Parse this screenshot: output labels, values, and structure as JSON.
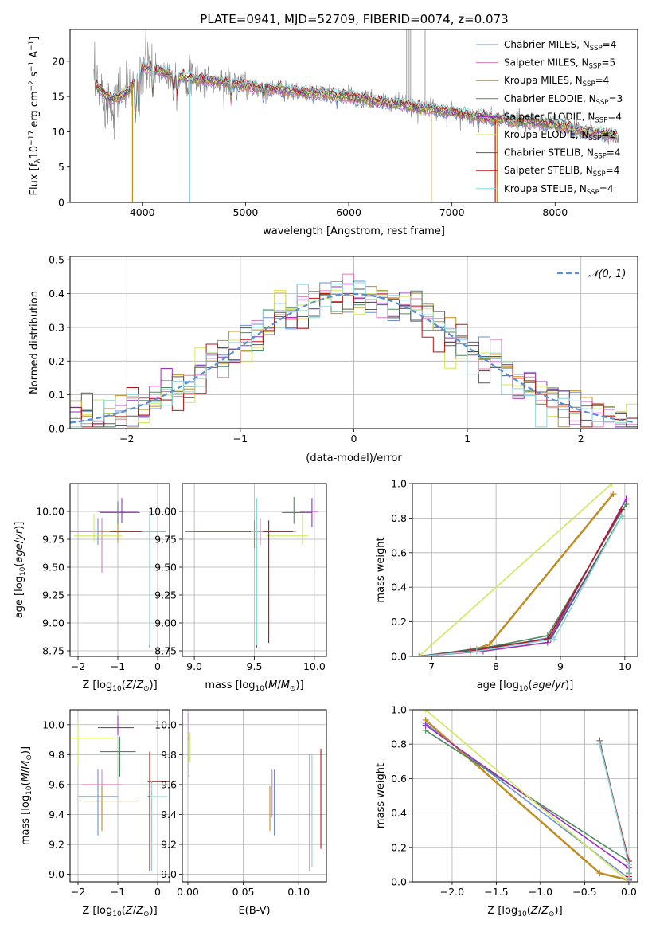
{
  "page_title": "PLATE=0941, MJD=52709, FIBERID=0074, z=0.073",
  "colors": {
    "chabrier_miles": "#6b8fd6",
    "salpeter_miles": "#e07bb8",
    "kroupa_miles": "#c0901c",
    "chabrier_elodie": "#4e8a5f",
    "salpeter_elodie": "#9b2fbf",
    "kroupa_elodie": "#d0e85a",
    "chabrier_stelib": "#5a5a5a",
    "salpeter_stelib": "#b81414",
    "kroupa_stelib": "#8ad6dc",
    "data_gray": "#808080",
    "normal_curve": "#5a8fd6"
  },
  "chart_data": [
    {
      "id": "spectrum",
      "type": "line",
      "title": "PLATE=0941, MJD=52709, FIBERID=0074, z=0.073",
      "xlabel": "wavelength [Angstrom, rest frame]",
      "ylabel": "Flux [f_λ 10^-17 erg cm^-2 s^-1 A^-1]",
      "xlim": [
        3300,
        8800
      ],
      "ylim": [
        0,
        24.5
      ],
      "xticks": [
        4000,
        5000,
        6000,
        7000,
        8000
      ],
      "yticks": [
        0,
        5,
        10,
        15,
        20
      ],
      "grid": false,
      "legend_position": "top-right",
      "continuum": {
        "wavelength": [
          3550,
          3700,
          3850,
          4000,
          4100,
          4300,
          4500,
          4800,
          5000,
          5300,
          5600,
          6000,
          6300,
          6500,
          6600,
          6800,
          7000,
          7300,
          7600,
          8000,
          8300,
          8600
        ],
        "flux": [
          16.5,
          14.5,
          15.5,
          19.0,
          19.0,
          18.0,
          17.5,
          17.0,
          16.5,
          16.0,
          15.5,
          15.0,
          14.2,
          13.9,
          13.6,
          13.2,
          12.8,
          12.0,
          11.6,
          11.0,
          10.0,
          9.4
        ]
      },
      "series": [
        {
          "name": "Chabrier MILES, N_SSP=4",
          "color_key": "chabrier_miles"
        },
        {
          "name": "Salpeter MILES, N_SSP=5",
          "color_key": "salpeter_miles"
        },
        {
          "name": "Kroupa MILES, N_SSP=4",
          "color_key": "kroupa_miles"
        },
        {
          "name": "Chabrier ELODIE, N_SSP=3",
          "color_key": "chabrier_elodie"
        },
        {
          "name": "Salpeter ELODIE, N_SSP=4",
          "color_key": "salpeter_elodie"
        },
        {
          "name": "Kroupa ELODIE, N_SSP=2",
          "color_key": "kroupa_elodie"
        },
        {
          "name": "Chabrier STELIB, N_SSP=4",
          "color_key": "chabrier_stelib"
        },
        {
          "name": "Salpeter STELIB, N_SSP=4",
          "color_key": "salpeter_stelib"
        },
        {
          "name": "Kroupa STELIB, N_SSP=4",
          "color_key": "kroupa_stelib"
        }
      ]
    },
    {
      "id": "residuals",
      "type": "line",
      "xlabel": "(data-model)/error",
      "ylabel": "Normed distribution",
      "xlim": [
        -2.5,
        2.5
      ],
      "ylim": [
        0,
        0.51
      ],
      "xticks": [
        -2,
        -1,
        0,
        1,
        2
      ],
      "yticks": [
        0.0,
        0.1,
        0.2,
        0.3,
        0.4,
        0.5
      ],
      "grid": true,
      "legend_position": "top-right",
      "bin_width": 0.1,
      "normal_curve": {
        "name": "N(0,1)",
        "color_key": "normal_curve"
      }
    },
    {
      "id": "age-vs-metallicity",
      "type": "scatter",
      "xlabel": "Z [log10(Z/Z⊙)]",
      "ylabel": "age [log10(age/yr)]",
      "xlim": [
        -2.2,
        0.3
      ],
      "ylim": [
        8.7,
        10.25
      ],
      "xticks": [
        -2,
        -1,
        0
      ],
      "yticks": [
        8.75,
        9.0,
        9.25,
        9.5,
        9.75,
        10.0
      ],
      "grid": true,
      "points": [
        {
          "key": "chabrier_miles",
          "x": -1.5,
          "y": 9.82,
          "xerr": [
            0.9,
            0.9
          ],
          "yerr": [
            0.12,
            0.12
          ]
        },
        {
          "key": "salpeter_miles",
          "x": -1.4,
          "y": 9.82,
          "xerr": [
            0.8,
            0.8
          ],
          "yerr": [
            0.37,
            0.12
          ]
        },
        {
          "key": "kroupa_miles",
          "x": -1.0,
          "y": 9.82,
          "xerr": [
            0.5,
            0.5
          ],
          "yerr": [
            0.1,
            0.1
          ]
        },
        {
          "key": "chabrier_elodie",
          "x": -1.0,
          "y": 9.99,
          "xerr": [
            0.45,
            0.55
          ],
          "yerr": [
            0.1,
            0.1
          ]
        },
        {
          "key": "salpeter_elodie",
          "x": -0.9,
          "y": 10.0,
          "xerr": [
            0.6,
            0.4
          ],
          "yerr": [
            0.1,
            0.12
          ]
        },
        {
          "key": "kroupa_elodie",
          "x": -1.6,
          "y": 9.78,
          "xerr": [
            0.5,
            0.7
          ],
          "yerr": [
            0.05,
            0.2
          ]
        },
        {
          "key": "chabrier_stelib",
          "x": -0.2,
          "y": 9.82,
          "xerr": [
            0.5,
            0.4
          ],
          "yerr": [
            1.04,
            0.17
          ]
        },
        {
          "key": "salpeter_stelib",
          "x": -0.2,
          "y": 9.82,
          "xerr": [
            1.0,
            0.4
          ],
          "yerr": [
            0.1,
            0.1
          ]
        },
        {
          "key": "kroupa_stelib",
          "x": -0.2,
          "y": 9.82,
          "xerr": [
            0.2,
            0.4
          ],
          "yerr": [
            1.02,
            0.18
          ]
        }
      ]
    },
    {
      "id": "age-vs-mass",
      "type": "scatter",
      "xlabel": "mass [log10(M/M⊙)]",
      "ylabel": "",
      "xlim": [
        8.9,
        10.1
      ],
      "ylim": [
        8.7,
        10.25
      ],
      "xticks": [
        9.0,
        9.5,
        10.0
      ],
      "yticks": [
        8.75,
        9.0,
        9.25,
        9.5,
        9.75,
        10.0
      ],
      "grid": true,
      "points": [
        {
          "key": "chabrier_miles",
          "x": 9.52,
          "y": 9.82,
          "xerr": [
            0.5,
            0.3
          ],
          "yerr": [
            0.1,
            0.1
          ]
        },
        {
          "key": "salpeter_miles",
          "x": 9.55,
          "y": 9.82,
          "xerr": [
            0.5,
            0.3
          ],
          "yerr": [
            0.12,
            0.12
          ]
        },
        {
          "key": "kroupa_miles",
          "x": 9.5,
          "y": 9.82,
          "xerr": [
            0.5,
            0.3
          ],
          "yerr": [
            0.15,
            0.1
          ]
        },
        {
          "key": "chabrier_elodie",
          "x": 9.83,
          "y": 9.99,
          "xerr": [
            0.1,
            0.15
          ],
          "yerr": [
            0.1,
            0.14
          ]
        },
        {
          "key": "salpeter_elodie",
          "x": 9.98,
          "y": 10.0,
          "xerr": [
            0.1,
            0.05
          ],
          "yerr": [
            0.14,
            0.12
          ]
        },
        {
          "key": "kroupa_elodie",
          "x": 9.9,
          "y": 9.78,
          "xerr": [
            0.3,
            0.05
          ],
          "yerr": [
            0.08,
            0.2
          ]
        },
        {
          "key": "chabrier_stelib",
          "x": 9.52,
          "y": 9.82,
          "xerr": [
            0.6,
            0.3
          ],
          "yerr": [
            1.04,
            0.17
          ]
        },
        {
          "key": "salpeter_stelib",
          "x": 9.62,
          "y": 9.82,
          "xerr": [
            0.1,
            0.2
          ],
          "yerr": [
            1.0,
            0.1
          ]
        },
        {
          "key": "kroupa_stelib",
          "x": 9.52,
          "y": 9.82,
          "xerr": [
            0.05,
            0.05
          ],
          "yerr": [
            1.02,
            0.3
          ]
        }
      ]
    },
    {
      "id": "weight-vs-age",
      "type": "line",
      "xlabel": "age [log10(age/yr)]",
      "ylabel": "mass weight",
      "xlim": [
        6.7,
        10.2
      ],
      "ylim": [
        0,
        1.0
      ],
      "xticks": [
        7,
        8,
        9,
        10
      ],
      "yticks": [
        0.0,
        0.2,
        0.4,
        0.6,
        0.8,
        1.0
      ],
      "grid": true,
      "series": [
        {
          "key": "chabrier_miles",
          "x": [
            6.8,
            7.7,
            8.85,
            9.95
          ],
          "y": [
            0.0,
            0.03,
            0.11,
            0.81
          ]
        },
        {
          "key": "salpeter_miles",
          "x": [
            6.8,
            7.6,
            7.9,
            9.82
          ],
          "y": [
            0.0,
            0.03,
            0.07,
            0.94
          ]
        },
        {
          "key": "kroupa_miles",
          "x": [
            6.8,
            7.6,
            7.9,
            9.82
          ],
          "y": [
            0.0,
            0.03,
            0.07,
            0.94
          ]
        },
        {
          "key": "chabrier_elodie",
          "x": [
            6.8,
            7.7,
            8.8,
            10.02
          ],
          "y": [
            0.0,
            0.04,
            0.12,
            0.88
          ]
        },
        {
          "key": "salpeter_elodie",
          "x": [
            6.8,
            7.8,
            8.8,
            10.02
          ],
          "y": [
            0.0,
            0.03,
            0.08,
            0.91
          ]
        },
        {
          "key": "kroupa_elodie",
          "x": [
            6.8,
            9.8
          ],
          "y": [
            0.0,
            1.0
          ]
        },
        {
          "key": "chabrier_stelib",
          "x": [
            6.8,
            7.6,
            8.85,
            9.95
          ],
          "y": [
            0.0,
            0.04,
            0.1,
            0.81
          ]
        },
        {
          "key": "salpeter_stelib",
          "x": [
            6.8,
            7.6,
            8.8,
            9.95
          ],
          "y": [
            0.0,
            0.03,
            0.1,
            0.85
          ]
        },
        {
          "key": "kroupa_stelib",
          "x": [
            6.8,
            7.7,
            8.9,
            9.95
          ],
          "y": [
            0.0,
            0.03,
            0.1,
            0.81
          ]
        }
      ]
    },
    {
      "id": "mass-vs-metallicity",
      "type": "scatter",
      "xlabel": "Z [log10(Z/Z⊙)]",
      "ylabel": "mass [log10(M/M⊙)]",
      "xlim": [
        -2.2,
        0.3
      ],
      "ylim": [
        8.95,
        10.1
      ],
      "xticks": [
        -2,
        -1,
        0
      ],
      "yticks": [
        9.0,
        9.2,
        9.4,
        9.6,
        9.8,
        10.0
      ],
      "grid": true,
      "points": [
        {
          "key": "chabrier_miles",
          "x": -1.5,
          "y": 9.52,
          "xerr": [
            0.5,
            0.5
          ],
          "yerr": [
            0.26,
            0.18
          ]
        },
        {
          "key": "salpeter_miles",
          "x": -1.4,
          "y": 9.6,
          "xerr": [
            0.5,
            0.5
          ],
          "yerr": [
            0.22,
            0.1
          ]
        },
        {
          "key": "kroupa_miles",
          "x": -1.4,
          "y": 9.49,
          "xerr": [
            0.5,
            0.9
          ],
          "yerr": [
            0.2,
            0.1
          ]
        },
        {
          "key": "chabrier_elodie",
          "x": -0.95,
          "y": 9.82,
          "xerr": [
            0.5,
            0.4
          ],
          "yerr": [
            0.17,
            0.1
          ]
        },
        {
          "key": "salpeter_elodie",
          "x": -1.0,
          "y": 9.98,
          "xerr": [
            0.5,
            0.4
          ],
          "yerr": [
            0.05,
            0.08
          ]
        },
        {
          "key": "kroupa_elodie",
          "x": -2.0,
          "y": 9.91,
          "xerr": [
            0.2,
            0.9
          ],
          "yerr": [
            0.18,
            0.1
          ]
        },
        {
          "key": "chabrier_stelib",
          "x": -0.2,
          "y": 9.52,
          "xerr": [
            0.05,
            0.05
          ],
          "yerr": [
            0.5,
            0.3
          ]
        },
        {
          "key": "salpeter_stelib",
          "x": -0.2,
          "y": 9.62,
          "xerr": [
            0.05,
            0.55
          ],
          "yerr": [
            0.6,
            0.2
          ]
        },
        {
          "key": "kroupa_stelib",
          "x": -0.15,
          "y": 9.52,
          "xerr": [
            0.05,
            0.4
          ],
          "yerr": [
            0.5,
            0.1
          ]
        }
      ]
    },
    {
      "id": "mass-vs-ebv",
      "type": "scatter",
      "xlabel": "E(B-V)",
      "ylabel": "",
      "xlim": [
        -0.005,
        0.125
      ],
      "ylim": [
        8.95,
        10.1
      ],
      "xticks": [
        0.0,
        0.05,
        0.1
      ],
      "yticks": [
        9.0,
        9.2,
        9.4,
        9.6,
        9.8,
        10.0
      ],
      "grid": true,
      "points": [
        {
          "key": "chabrier_miles",
          "x": 0.078,
          "y": 9.52,
          "xerr": [
            0,
            0
          ],
          "yerr": [
            0.26,
            0.18
          ]
        },
        {
          "key": "salpeter_miles",
          "x": 0.076,
          "y": 9.6,
          "xerr": [
            0,
            0
          ],
          "yerr": [
            0.22,
            0.1
          ]
        },
        {
          "key": "kroupa_miles",
          "x": 0.074,
          "y": 9.49,
          "xerr": [
            0,
            0
          ],
          "yerr": [
            0.2,
            0.1
          ]
        },
        {
          "key": "chabrier_elodie",
          "x": 0.001,
          "y": 9.82,
          "xerr": [
            0,
            0
          ],
          "yerr": [
            0.17,
            0.1
          ]
        },
        {
          "key": "salpeter_elodie",
          "x": 0.001,
          "y": 9.98,
          "xerr": [
            0,
            0
          ],
          "yerr": [
            0.08,
            0.1
          ]
        },
        {
          "key": "kroupa_elodie",
          "x": 0.002,
          "y": 9.85,
          "xerr": [
            0,
            0
          ],
          "yerr": [
            0.1,
            0.1
          ]
        },
        {
          "key": "chabrier_stelib",
          "x": 0.11,
          "y": 9.52,
          "xerr": [
            0,
            0
          ],
          "yerr": [
            0.5,
            0.28
          ]
        },
        {
          "key": "salpeter_stelib",
          "x": 0.12,
          "y": 9.62,
          "xerr": [
            0,
            0
          ],
          "yerr": [
            0.45,
            0.22
          ]
        },
        {
          "key": "kroupa_stelib",
          "x": 0.112,
          "y": 9.5,
          "xerr": [
            0,
            0
          ],
          "yerr": [
            0.45,
            0.3
          ]
        }
      ]
    },
    {
      "id": "weight-vs-metallicity",
      "type": "line",
      "xlabel": "Z [log10(Z/Z⊙)]",
      "ylabel": "mass weight",
      "xlim": [
        -2.45,
        0.1
      ],
      "ylim": [
        0,
        1.0
      ],
      "xticks": [
        -2.0,
        -1.5,
        -1.0,
        -0.5,
        0.0
      ],
      "yticks": [
        0.0,
        0.2,
        0.4,
        0.6,
        0.8,
        1.0
      ],
      "grid": true,
      "series": [
        {
          "key": "chabrier_miles",
          "x": [
            -2.3,
            0.0
          ],
          "y": [
            0.92,
            0.02
          ]
        },
        {
          "key": "salpeter_miles",
          "x": [
            -2.3,
            -0.33,
            0.0
          ],
          "y": [
            0.94,
            0.05,
            0.01
          ]
        },
        {
          "key": "kroupa_miles",
          "x": [
            -2.3,
            -0.33,
            0.0
          ],
          "y": [
            0.94,
            0.05,
            0.01
          ]
        },
        {
          "key": "chabrier_elodie",
          "x": [
            -2.3,
            0.0,
            0.0
          ],
          "y": [
            0.88,
            0.12,
            0.05
          ]
        },
        {
          "key": "salpeter_elodie",
          "x": [
            -2.3,
            0.0,
            0.0
          ],
          "y": [
            0.91,
            0.08,
            0.01
          ]
        },
        {
          "key": "kroupa_elodie",
          "x": [
            -2.3,
            0.0
          ],
          "y": [
            1.0,
            0.0
          ]
        },
        {
          "key": "chabrier_stelib",
          "x": [
            -0.33,
            0.0,
            0.0
          ],
          "y": [
            0.82,
            0.1,
            0.04
          ]
        },
        {
          "key": "salpeter_stelib",
          "x": [
            -0.33,
            0.0,
            0.0
          ],
          "y": [
            0.8,
            0.12,
            0.03
          ]
        },
        {
          "key": "kroupa_stelib",
          "x": [
            -0.33,
            0.0,
            0.0
          ],
          "y": [
            0.8,
            0.1,
            0.02
          ]
        }
      ]
    }
  ]
}
